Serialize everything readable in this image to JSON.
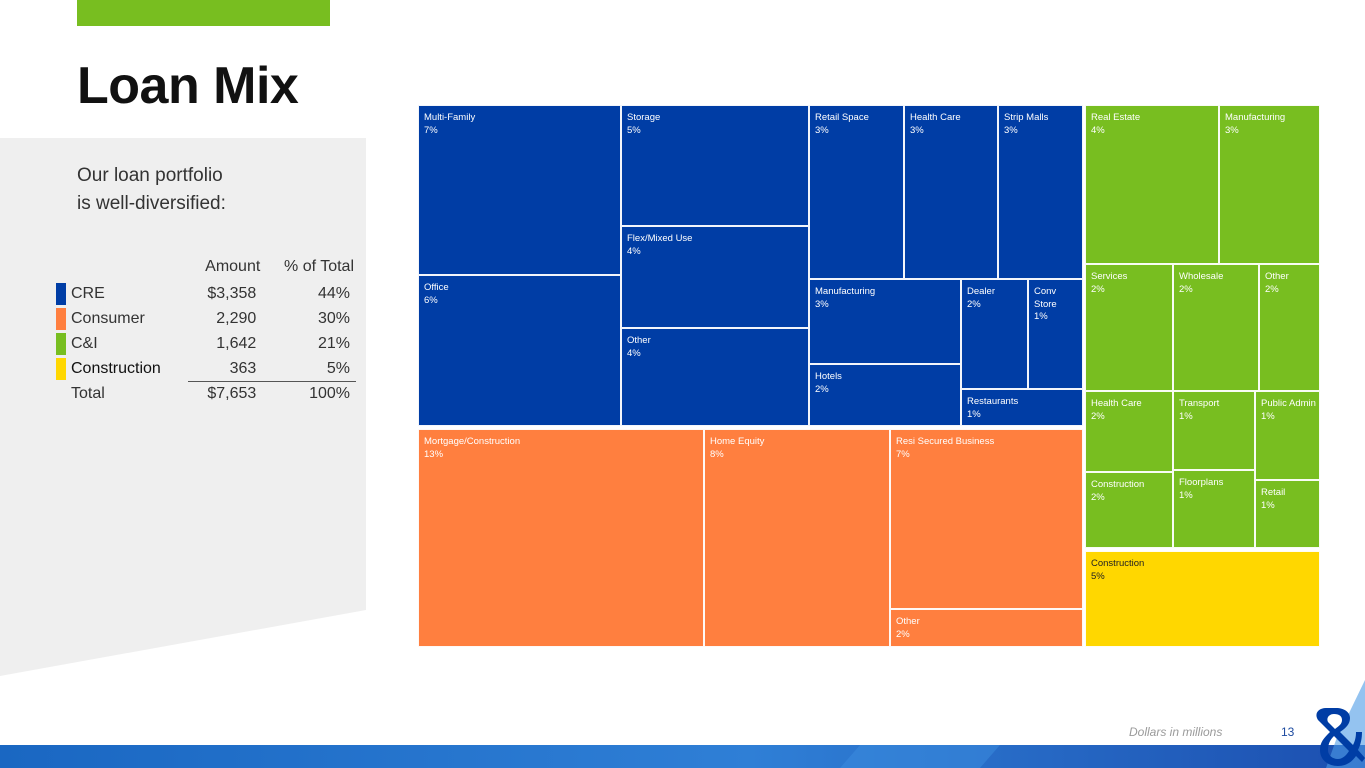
{
  "slide": {
    "title": "Loan Mix",
    "intro_line1": "Our loan portfolio",
    "intro_line2": "is well-diversified:",
    "footnote": "Dollars in millions",
    "page_number": "13"
  },
  "summary_table": {
    "headers": {
      "amount": "Amount",
      "pct": "% of Total"
    },
    "rows": [
      {
        "label": "CRE",
        "amount": "$3,358",
        "pct": "44%",
        "color": "#003da5"
      },
      {
        "label": "Consumer",
        "amount": "2,290",
        "pct": "30%",
        "color": "#ff7f3f"
      },
      {
        "label": "C&I",
        "amount": "1,642",
        "pct": "21%",
        "color": "#78be20"
      },
      {
        "label": "Construction",
        "amount": "363",
        "pct": "5%",
        "color": "#ffd700"
      }
    ],
    "total": {
      "label": "Total",
      "amount": "$7,653",
      "pct": "100%"
    }
  },
  "colors": {
    "cre": "#003da5",
    "consumer": "#ff7f3f",
    "ci": "#78be20",
    "construction": "#ffd700",
    "accent_green": "#78be20",
    "brand_blue": "#1e4ba0"
  },
  "chart_data": {
    "type": "treemap",
    "title": "",
    "unit": "% of Total",
    "groups": [
      {
        "name": "CRE",
        "total_pct": 44,
        "items": [
          {
            "name": "Multi-Family",
            "pct": 7,
            "label": "7%"
          },
          {
            "name": "Office",
            "pct": 6,
            "label": "6%"
          },
          {
            "name": "Storage",
            "pct": 5,
            "label": "5%"
          },
          {
            "name": "Flex/Mixed Use",
            "pct": 4,
            "label": "4%"
          },
          {
            "name": "Other",
            "pct": 4,
            "label": "4%"
          },
          {
            "name": "Retail Space",
            "pct": 3,
            "label": "3%"
          },
          {
            "name": "Health Care",
            "pct": 3,
            "label": "3%"
          },
          {
            "name": "Strip Malls",
            "pct": 3,
            "label": "3%"
          },
          {
            "name": "Manufacturing",
            "pct": 3,
            "label": "3%"
          },
          {
            "name": "Dealer",
            "pct": 2,
            "label": "2%"
          },
          {
            "name": "Conv Store",
            "pct": 1,
            "label": "1%"
          },
          {
            "name": "Hotels",
            "pct": 2,
            "label": "2%"
          },
          {
            "name": "Restaurants",
            "pct": 1,
            "label": "1%"
          }
        ]
      },
      {
        "name": "Consumer",
        "total_pct": 30,
        "items": [
          {
            "name": "Mortgage/Construction",
            "pct": 13,
            "label": "13%"
          },
          {
            "name": "Home Equity",
            "pct": 8,
            "label": "8%"
          },
          {
            "name": "Resi Secured Business",
            "pct": 7,
            "label": "7%"
          },
          {
            "name": "Other",
            "pct": 2,
            "label": "2%"
          }
        ]
      },
      {
        "name": "C&I",
        "total_pct": 21,
        "items": [
          {
            "name": "Real Estate",
            "pct": 4,
            "label": "4%"
          },
          {
            "name": "Manufacturing",
            "pct": 3,
            "label": "3%"
          },
          {
            "name": "Services",
            "pct": 2,
            "label": "2%"
          },
          {
            "name": "Wholesale",
            "pct": 2,
            "label": "2%"
          },
          {
            "name": "Other",
            "pct": 2,
            "label": "2%"
          },
          {
            "name": "Health Care",
            "pct": 2,
            "label": "2%"
          },
          {
            "name": "Transport",
            "pct": 1,
            "label": "1%"
          },
          {
            "name": "Public Admin",
            "pct": 1,
            "label": "1%"
          },
          {
            "name": "Construction",
            "pct": 2,
            "label": "2%"
          },
          {
            "name": "Floorplans",
            "pct": 1,
            "label": "1%"
          },
          {
            "name": "Retail",
            "pct": 1,
            "label": "1%"
          }
        ]
      },
      {
        "name": "Construction",
        "total_pct": 5,
        "items": [
          {
            "name": "Construction",
            "pct": 5,
            "label": "5%"
          }
        ]
      }
    ]
  }
}
